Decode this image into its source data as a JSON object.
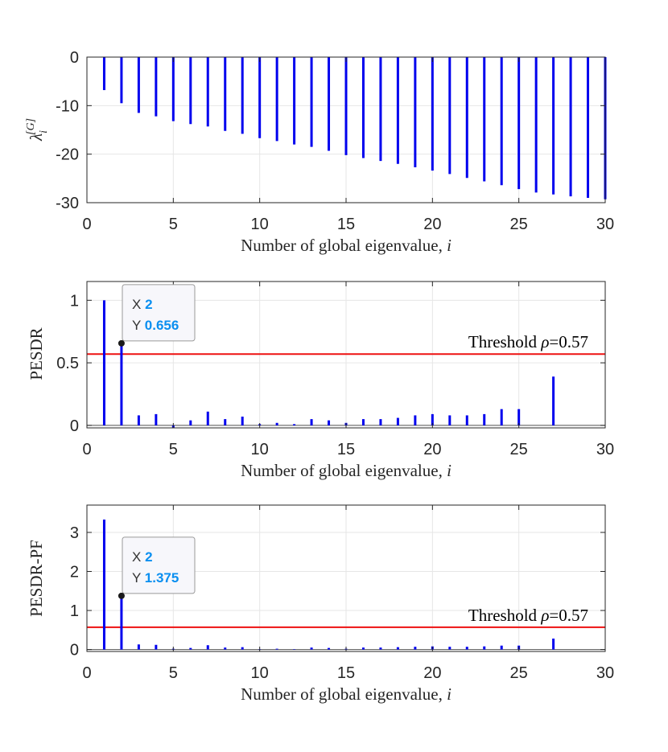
{
  "chart_data": [
    {
      "type": "stem",
      "xlabel": "Number of global eigenvalue, ",
      "xlabel_var": "i",
      "ylabel_base": "λ",
      "ylabel_sub": "i",
      "ylabel_sup": "[G]",
      "xlim": [
        0,
        30
      ],
      "ylim": [
        -30,
        0
      ],
      "xticks": [
        0,
        5,
        10,
        15,
        20,
        25,
        30
      ],
      "yticks": [
        0,
        -10,
        -20,
        -30
      ],
      "grid": true,
      "color": "#0000ee",
      "x": [
        1,
        2,
        3,
        4,
        5,
        6,
        7,
        8,
        9,
        10,
        11,
        12,
        13,
        14,
        15,
        16,
        17,
        18,
        19,
        20,
        21,
        22,
        23,
        24,
        25,
        26,
        27,
        28,
        29,
        30
      ],
      "values": [
        -6.8,
        -9.5,
        -11.5,
        -12.2,
        -13.2,
        -13.8,
        -14.3,
        -15.2,
        -15.8,
        -16.7,
        -17.3,
        -18.0,
        -18.5,
        -19.3,
        -20.2,
        -20.8,
        -21.4,
        -22.0,
        -22.7,
        -23.4,
        -24.1,
        -24.9,
        -25.6,
        -26.4,
        -27.2,
        -27.9,
        -28.3,
        -28.7,
        -29.0,
        -29.3
      ]
    },
    {
      "type": "stem",
      "xlabel": "Number of global eigenvalue, ",
      "xlabel_var": "i",
      "ylabel": "PESDR",
      "xlim": [
        0,
        30
      ],
      "ylim": [
        -0.02,
        1.15
      ],
      "xticks": [
        0,
        5,
        10,
        15,
        20,
        25,
        30
      ],
      "yticks": [
        0,
        0.5,
        1
      ],
      "ytick_labels": [
        "0",
        "0.5",
        "1"
      ],
      "grid": true,
      "color": "#0000ee",
      "x": [
        1,
        2,
        3,
        4,
        5,
        6,
        7,
        8,
        9,
        10,
        11,
        12,
        13,
        14,
        15,
        16,
        17,
        18,
        19,
        20,
        21,
        22,
        23,
        24,
        25,
        27
      ],
      "values": [
        1.0,
        0.656,
        0.08,
        0.09,
        -0.02,
        0.04,
        0.11,
        0.05,
        0.07,
        0.01,
        0.02,
        0.01,
        0.05,
        0.04,
        0.02,
        0.05,
        0.05,
        0.06,
        0.08,
        0.09,
        0.08,
        0.08,
        0.09,
        0.13,
        0.13,
        0.39
      ],
      "threshold": {
        "value": 0.57,
        "label": "Threshold ",
        "label_var": "ρ",
        "label_value": "=0.57",
        "color": "#ee1111"
      },
      "datatip": {
        "x_key": "X",
        "x_value": "2",
        "y_key": "Y",
        "y_value": "0.656",
        "x": 2,
        "y": 0.656
      }
    },
    {
      "type": "stem",
      "xlabel": "Number of global eigenvalue, ",
      "xlabel_var": "i",
      "ylabel": "PESDR-PF",
      "xlim": [
        0,
        30
      ],
      "ylim": [
        -0.05,
        3.7
      ],
      "xticks": [
        0,
        5,
        10,
        15,
        20,
        25,
        30
      ],
      "yticks": [
        0,
        1,
        2,
        3
      ],
      "ytick_labels": [
        "0",
        "1",
        "2",
        "3"
      ],
      "grid": true,
      "color": "#0000ee",
      "x": [
        1,
        2,
        3,
        4,
        5,
        6,
        7,
        8,
        9,
        10,
        11,
        12,
        13,
        14,
        15,
        16,
        17,
        18,
        19,
        20,
        21,
        22,
        23,
        24,
        25,
        27
      ],
      "values": [
        3.33,
        1.375,
        0.13,
        0.12,
        0.02,
        0.04,
        0.11,
        0.05,
        0.06,
        0.01,
        0.02,
        0.01,
        0.05,
        0.04,
        0.02,
        0.05,
        0.05,
        0.06,
        0.07,
        0.08,
        0.07,
        0.07,
        0.08,
        0.1,
        0.1,
        0.28
      ],
      "threshold": {
        "value": 0.57,
        "label": "Threshold ",
        "label_var": "ρ",
        "label_value": "=0.57",
        "color": "#ee1111"
      },
      "datatip": {
        "x_key": "X",
        "x_value": "2",
        "y_key": "Y",
        "y_value": "1.375",
        "x": 2,
        "y": 1.375
      }
    }
  ]
}
